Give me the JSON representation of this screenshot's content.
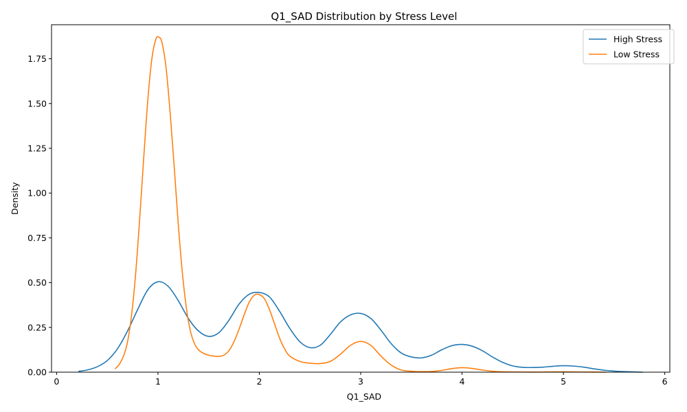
{
  "chart_data": {
    "type": "line",
    "title": "Q1_SAD Distribution by Stress Level",
    "xlabel": "Q1_SAD",
    "ylabel": "Density",
    "xlim": [
      -0.05,
      6.05
    ],
    "ylim": [
      0.0,
      1.94
    ],
    "x_ticks": [
      0,
      1,
      2,
      3,
      4,
      5,
      6
    ],
    "x_tick_labels": [
      "0",
      "1",
      "2",
      "3",
      "4",
      "5",
      "6"
    ],
    "y_ticks": [
      0.0,
      0.25,
      0.5,
      0.75,
      1.0,
      1.25,
      1.5,
      1.75
    ],
    "y_tick_labels": [
      "0.00",
      "0.25",
      "0.50",
      "0.75",
      "1.00",
      "1.25",
      "1.50",
      "1.75"
    ],
    "grid": false,
    "legend_position": "top-right",
    "series": [
      {
        "name": "High Stress",
        "color": "#1f77b4",
        "x": [
          0.22,
          0.3,
          0.4,
          0.5,
          0.6,
          0.7,
          0.8,
          0.9,
          1.0,
          1.1,
          1.2,
          1.3,
          1.4,
          1.5,
          1.6,
          1.7,
          1.8,
          1.9,
          2.0,
          2.1,
          2.2,
          2.3,
          2.4,
          2.5,
          2.6,
          2.7,
          2.8,
          2.9,
          3.0,
          3.1,
          3.2,
          3.3,
          3.4,
          3.5,
          3.6,
          3.7,
          3.8,
          3.9,
          4.0,
          4.1,
          4.2,
          4.3,
          4.4,
          4.5,
          4.6,
          4.7,
          4.8,
          4.9,
          5.0,
          5.1,
          5.2,
          5.3,
          5.4,
          5.5,
          5.6,
          5.78
        ],
        "y": [
          0.005,
          0.012,
          0.03,
          0.065,
          0.13,
          0.23,
          0.35,
          0.46,
          0.505,
          0.48,
          0.4,
          0.3,
          0.23,
          0.2,
          0.22,
          0.29,
          0.38,
          0.435,
          0.445,
          0.42,
          0.34,
          0.245,
          0.17,
          0.137,
          0.15,
          0.21,
          0.28,
          0.32,
          0.328,
          0.3,
          0.235,
          0.16,
          0.107,
          0.085,
          0.08,
          0.095,
          0.125,
          0.148,
          0.155,
          0.145,
          0.12,
          0.085,
          0.055,
          0.035,
          0.027,
          0.026,
          0.028,
          0.033,
          0.036,
          0.034,
          0.028,
          0.019,
          0.011,
          0.006,
          0.003,
          0.0
        ]
      },
      {
        "name": "Low Stress",
        "color": "#ff7f0e",
        "x": [
          0.58,
          0.62,
          0.66,
          0.7,
          0.74,
          0.78,
          0.82,
          0.86,
          0.9,
          0.94,
          0.98,
          1.01,
          1.04,
          1.08,
          1.12,
          1.16,
          1.2,
          1.24,
          1.28,
          1.32,
          1.36,
          1.4,
          1.45,
          1.5,
          1.55,
          1.6,
          1.65,
          1.7,
          1.75,
          1.8,
          1.85,
          1.9,
          1.95,
          2.0,
          2.05,
          2.1,
          2.15,
          2.2,
          2.25,
          2.3,
          2.4,
          2.5,
          2.6,
          2.7,
          2.8,
          2.9,
          3.0,
          3.1,
          3.2,
          3.3,
          3.4,
          3.5,
          3.6,
          3.7,
          3.8,
          3.9,
          4.0,
          4.1,
          4.2,
          4.3,
          4.4,
          4.6,
          4.8,
          5.0,
          5.2,
          5.42
        ],
        "y": [
          0.02,
          0.045,
          0.09,
          0.17,
          0.32,
          0.55,
          0.86,
          1.2,
          1.52,
          1.75,
          1.86,
          1.87,
          1.84,
          1.7,
          1.45,
          1.15,
          0.83,
          0.56,
          0.36,
          0.23,
          0.16,
          0.125,
          0.105,
          0.095,
          0.09,
          0.088,
          0.095,
          0.12,
          0.17,
          0.24,
          0.32,
          0.39,
          0.43,
          0.433,
          0.41,
          0.35,
          0.27,
          0.19,
          0.13,
          0.09,
          0.06,
          0.05,
          0.048,
          0.06,
          0.1,
          0.15,
          0.172,
          0.15,
          0.09,
          0.04,
          0.012,
          0.005,
          0.003,
          0.004,
          0.01,
          0.02,
          0.025,
          0.021,
          0.012,
          0.005,
          0.002,
          0.001,
          0.001,
          0.002,
          0.001,
          0.0
        ]
      }
    ]
  }
}
